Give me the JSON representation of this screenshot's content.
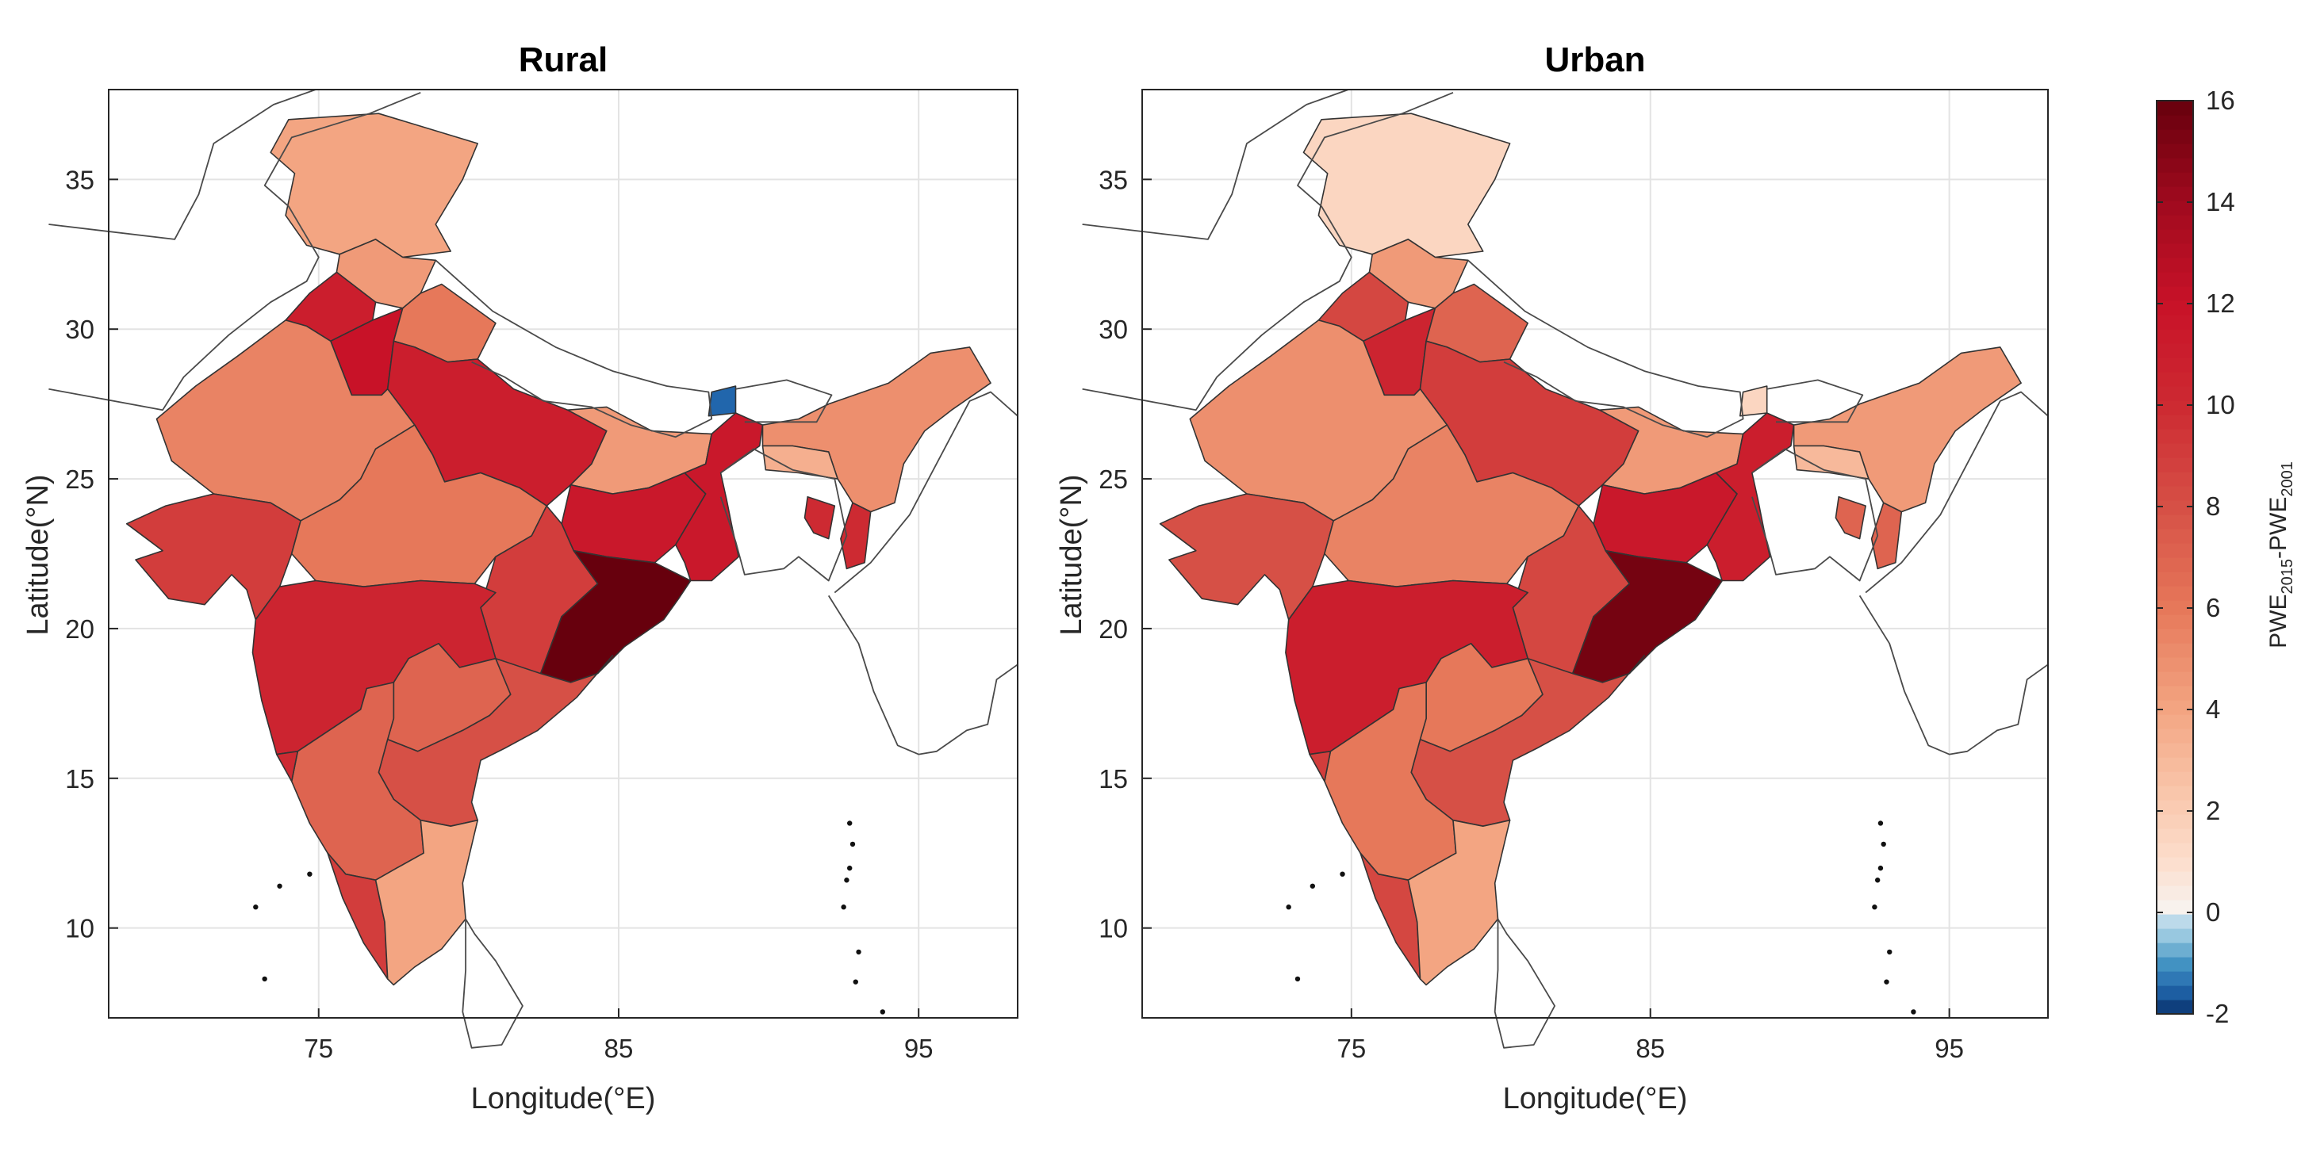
{
  "panels": [
    {
      "id": "rural",
      "title": "Rural"
    },
    {
      "id": "urban",
      "title": "Urban"
    }
  ],
  "axes": {
    "xlabel": "Longitude(°E)",
    "ylabel": "Latitude(°N)",
    "lon_range": [
      68,
      98.3
    ],
    "lat_range": [
      7,
      38
    ],
    "xticks": [
      75,
      85,
      95
    ],
    "yticks": [
      10,
      15,
      20,
      25,
      30,
      35
    ]
  },
  "colorbar": {
    "min": -2,
    "max": 16,
    "ticks": [
      -2,
      0,
      2,
      4,
      6,
      8,
      10,
      12,
      14,
      16
    ],
    "label_main": "PWE",
    "label_sub1": "2015",
    "label_dash": "-PWE",
    "label_sub2": "2001",
    "colors": {
      "deep_blue": "#08306b",
      "white": "#f7f4f1",
      "dark_red": "#67000d"
    }
  },
  "chart_data": {
    "type": "choropleth",
    "title": [
      "Rural",
      "Urban"
    ],
    "xlabel": "Longitude(°E)",
    "ylabel": "Latitude(°N)",
    "value_range": [
      -2,
      16
    ],
    "series": [
      {
        "name": "Rural",
        "values": {
          "Jammu & Kashmir": 4.0,
          "Himachal Pradesh": 4.5,
          "Punjab": 11.0,
          "Haryana": 12.0,
          "Uttarakhand": 6.0,
          "Uttar Pradesh": 11.0,
          "Rajasthan": 5.5,
          "Gujarat": 9.0,
          "Madhya Pradesh": 6.0,
          "Bihar": 4.5,
          "Jharkhand": 11.5,
          "West Bengal": 11.5,
          "Chhattisgarh": 9.0,
          "Odisha": 16.0,
          "Maharashtra": 10.5,
          "Telangana": 7.0,
          "Andhra Pradesh": 8.0,
          "Karnataka": 7.0,
          "Goa": 10.0,
          "Kerala": 9.0,
          "Tamil Nadu": 4.0,
          "Sikkim": -1.5,
          "Northeast": 5.0,
          "Meghalaya": 3.5,
          "Mizoram": 10.0,
          "Tripura": 10.0
        }
      },
      {
        "name": "Urban",
        "values": {
          "Jammu & Kashmir": 1.5,
          "Himachal Pradesh": 4.5,
          "Punjab": 8.5,
          "Haryana": 10.5,
          "Uttarakhand": 7.0,
          "Uttar Pradesh": 9.0,
          "Rajasthan": 5.0,
          "Gujarat": 8.0,
          "Madhya Pradesh": 5.5,
          "Bihar": 4.5,
          "Jharkhand": 11.5,
          "West Bengal": 11.0,
          "Chhattisgarh": 8.5,
          "Odisha": 15.5,
          "Maharashtra": 11.0,
          "Telangana": 6.0,
          "Andhra Pradesh": 8.0,
          "Karnataka": 6.0,
          "Goa": 9.0,
          "Kerala": 8.5,
          "Tamil Nadu": 4.0,
          "Sikkim": 1.5,
          "Northeast": 4.5,
          "Meghalaya": 3.0,
          "Mizoram": 7.0,
          "Tripura": 7.0
        }
      }
    ]
  }
}
